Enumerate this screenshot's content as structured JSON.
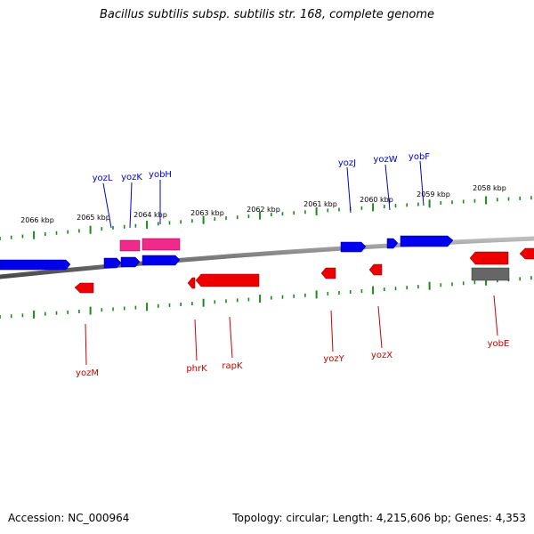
{
  "header": {
    "title": "Bacillus subtilis subsp. subtilis str. 168, complete genome"
  },
  "footer": {
    "accession": "Accession: NC_000964",
    "summary": "Topology: circular; Length: 4,215,606 bp; Genes: 4,353"
  },
  "colors": {
    "forward_gene": "#0000ee",
    "reverse_gene": "#ee0000",
    "rna_gene": "#ee2a8a",
    "pseudo_gene": "#666666",
    "tick": "#1a8a1a",
    "backbone": "#808080"
  },
  "scale_labels": [
    "2066 kbp",
    "2065 kbp",
    "2064 kbp",
    "2063 kbp",
    "2062 kbp",
    "2061 kbp",
    "2060 kbp",
    "2059 kbp",
    "2058 kbp"
  ],
  "upper_gene_labels": [
    "yozL",
    "yozK",
    "yobH",
    "yozJ",
    "yozW",
    "yobF"
  ],
  "lower_gene_labels": [
    "yozM",
    "phrK",
    "rapK",
    "yozY",
    "yozX",
    "yobE"
  ]
}
